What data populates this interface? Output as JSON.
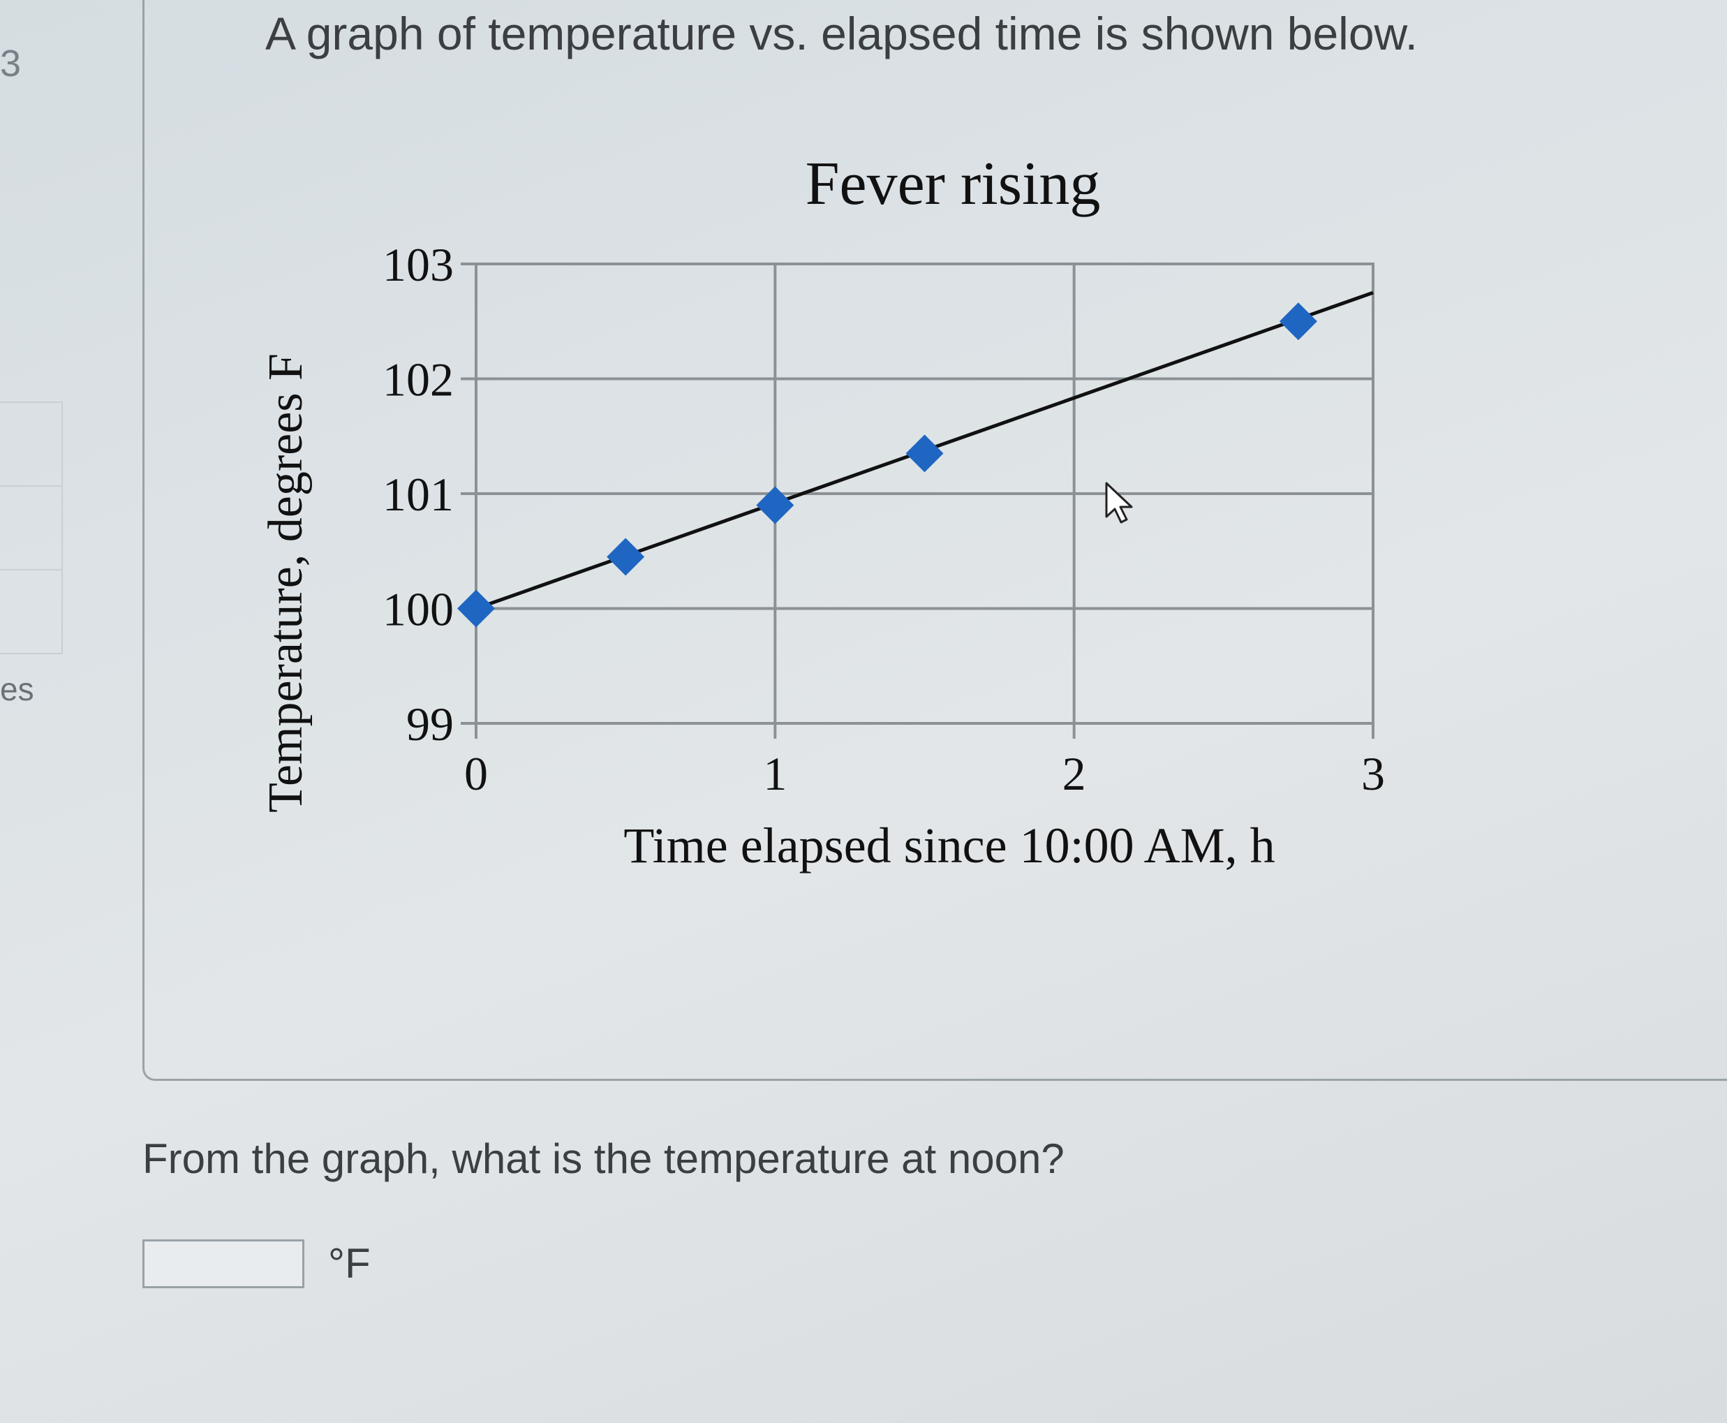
{
  "sidebar": {
    "number": "3",
    "partial_label": "es"
  },
  "intro_text": "A graph of temperature vs. elapsed time is shown below.",
  "question_text": "From the graph, what is the temperature at noon?",
  "answer": {
    "value": "",
    "unit": "°F"
  },
  "chart_data": {
    "type": "scatter",
    "title": "Fever rising",
    "xlabel": "Time elapsed since 10:00 AM, h",
    "ylabel": "Temperature, degrees F",
    "xlim": [
      0,
      3
    ],
    "ylim": [
      99,
      103
    ],
    "x_ticks": [
      "0",
      "1",
      "2",
      "3"
    ],
    "y_ticks": [
      "99",
      "100",
      "101",
      "102",
      "103"
    ],
    "grid": true,
    "points": [
      {
        "x": 0.0,
        "y": 100.0
      },
      {
        "x": 0.5,
        "y": 100.45
      },
      {
        "x": 1.0,
        "y": 100.9
      },
      {
        "x": 1.5,
        "y": 101.35
      },
      {
        "x": 2.75,
        "y": 102.5
      }
    ],
    "trendline": {
      "x": [
        0,
        3
      ],
      "y": [
        100.0,
        102.75
      ]
    },
    "colors": {
      "marker": "#1f66c2",
      "line": "#111111",
      "grid": "#8c9196"
    }
  }
}
